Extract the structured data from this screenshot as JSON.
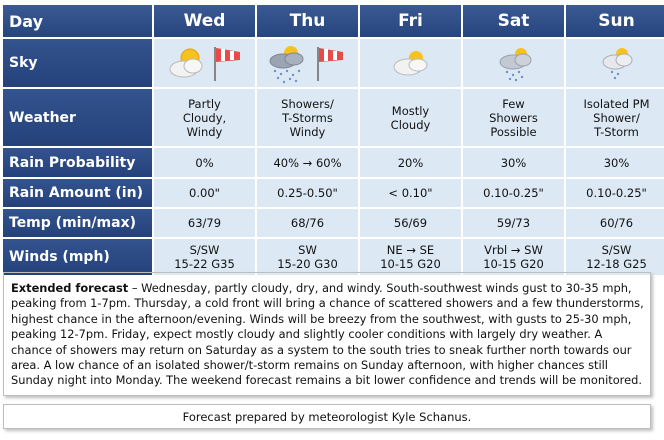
{
  "header": {
    "corner": "Day",
    "days": [
      "Wed",
      "Thu",
      "Fri",
      "Sat",
      "Sun"
    ]
  },
  "rows": [
    {
      "label": "Sky",
      "icons": [
        "partly-cloudy-sun-windsock-icon",
        "tstorm-windsock-icon",
        "mostly-cloudy-sun-icon",
        "showers-sun-icon",
        "shower-sun-icon"
      ]
    },
    {
      "label": "Weather",
      "values": [
        "Partly\nCloudy,\nWindy",
        "Showers/\nT-Storms\nWindy",
        "Mostly\nCloudy",
        "Few\nShowers\nPossible",
        "Isolated PM\nShower/\nT-Storm"
      ]
    },
    {
      "label": "Rain Probability",
      "values": [
        "0%",
        "40% → 60%",
        "20%",
        "30%",
        "30%"
      ]
    },
    {
      "label": "Rain Amount (in)",
      "values": [
        "0.00\"",
        "0.25-0.50\"",
        "< 0.10\"",
        "0.10-0.25\"",
        "0.10-0.25\""
      ]
    },
    {
      "label": "Temp (min/max)",
      "values": [
        "63/79",
        "68/76",
        "56/69",
        "59/73",
        "60/76"
      ]
    },
    {
      "label": "Winds (mph)",
      "values": [
        "S/SW\n15-22 G35",
        "SW\n15-20 G30",
        "NE → SE\n10-15 G20",
        "Vrbl → SW\n10-15 G20",
        "S/SW\n12-18 G25"
      ]
    }
  ],
  "extended": {
    "lead": "Extended forecast",
    "text": " – Wednesday, partly cloudy, dry, and windy. South-southwest winds gust to 30-35 mph, peaking from 1-7pm. Thursday, a cold front will bring a chance of scattered showers and a few thunderstorms, highest chance in the afternoon/evening. Winds will be breezy from the southwest, with gusts to 25-30 mph, peaking 12-7pm. Friday, expect mostly cloudy and slightly cooler conditions with largely dry weather. A chance of showers may return on Saturday as a system to the south tries to sneak further north towards our area. A low chance of an isolated shower/t-storm remains on Sunday afternoon, with higher chances still Sunday night into Monday. The weekend forecast remains a bit lower confidence and trends will be monitored."
  },
  "credit": "Forecast prepared by meteorologist Kyle Schanus.",
  "colors": {
    "header": "#2e4d88",
    "cell": "#dce9f5"
  }
}
